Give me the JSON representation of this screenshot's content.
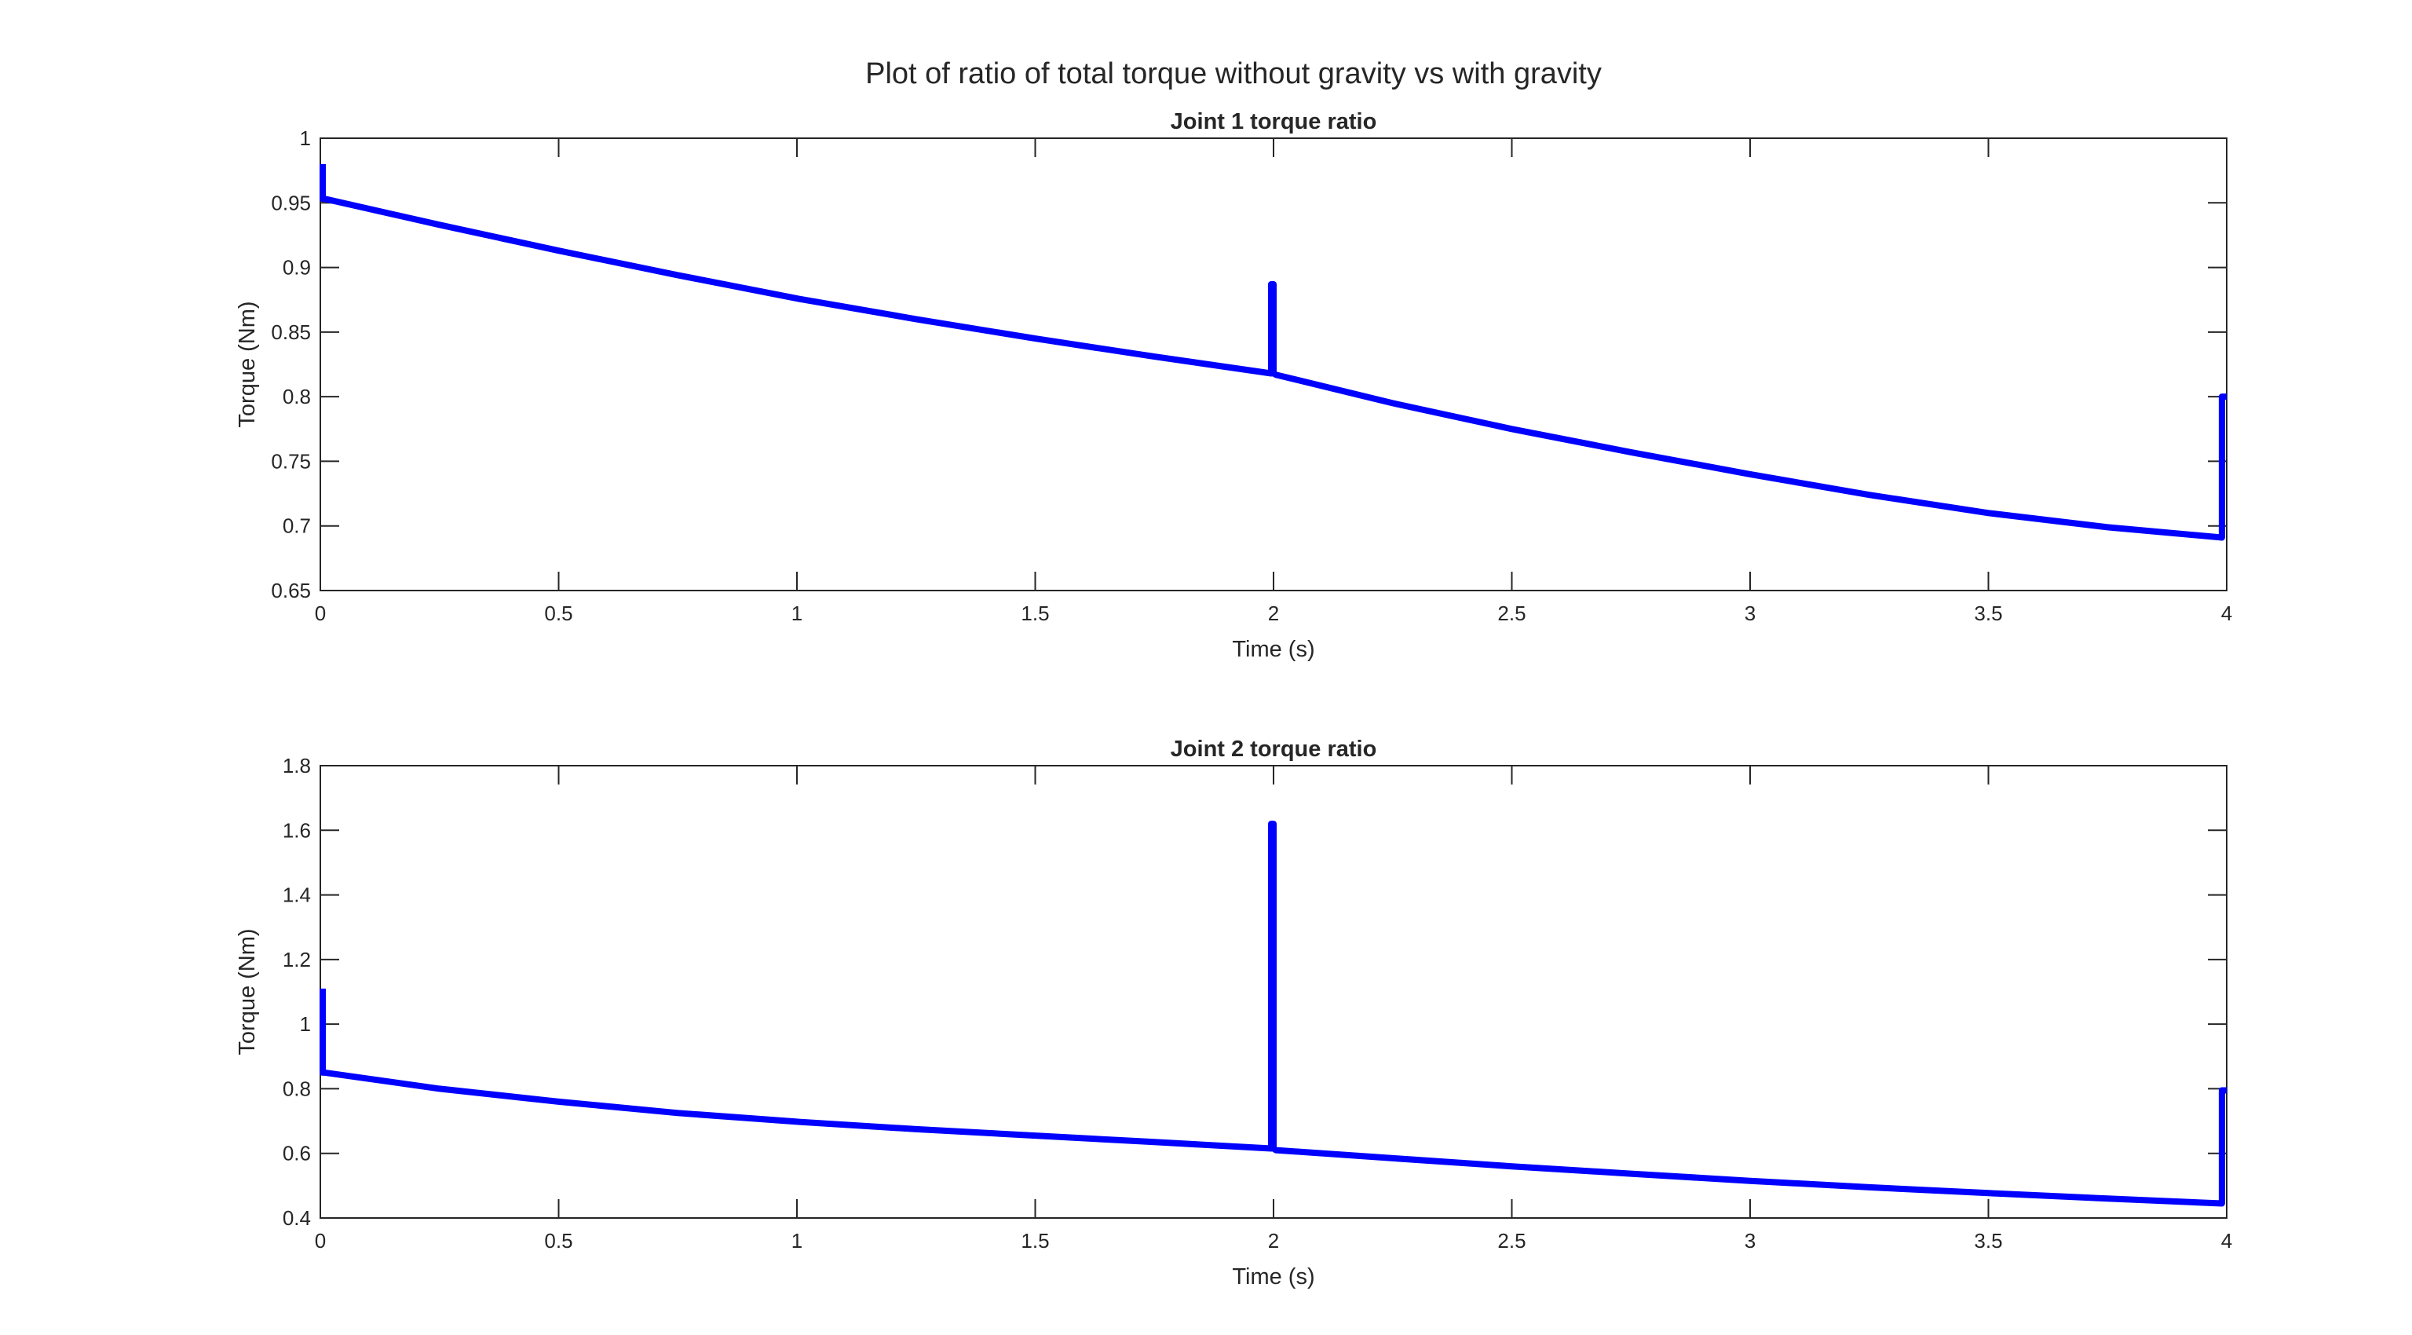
{
  "figure": {
    "title": "Plot of ratio of total torque without gravity vs with gravity"
  },
  "colors": {
    "series": "#0000ff",
    "axes": "#262626",
    "background": "#ffffff"
  },
  "chart_data": [
    {
      "type": "line",
      "title": "Joint 1 torque ratio",
      "xlabel": "Time (s)",
      "ylabel": "Torque (Nm)",
      "xlim": [
        0,
        4
      ],
      "ylim": [
        0.65,
        1
      ],
      "xticks": [
        0,
        0.5,
        1,
        1.5,
        2,
        2.5,
        3,
        3.5,
        4
      ],
      "xtick_labels": [
        "0",
        "0.5",
        "1",
        "1.5",
        "2",
        "2.5",
        "3",
        "3.5",
        "4"
      ],
      "yticks": [
        0.65,
        0.7,
        0.75,
        0.8,
        0.85,
        0.9,
        0.95,
        1
      ],
      "ytick_labels": [
        "0.65",
        "0.7",
        "0.75",
        "0.8",
        "0.85",
        "0.9",
        "0.95",
        "1"
      ],
      "grid": false,
      "series": [
        {
          "x": [
            0.005,
            0.005,
            0.01,
            0.25,
            0.5,
            0.75,
            1.0,
            1.25,
            1.5,
            1.75,
            1.995,
            1.995,
            2.0,
            2.0,
            2.005,
            2.25,
            2.5,
            2.75,
            3.0,
            3.25,
            3.5,
            3.75,
            3.99,
            3.99,
            4.0
          ],
          "y": [
            0.98,
            0.953,
            0.953,
            0.933,
            0.913,
            0.894,
            0.876,
            0.86,
            0.845,
            0.831,
            0.818,
            0.887,
            0.887,
            0.818,
            0.817,
            0.795,
            0.775,
            0.757,
            0.74,
            0.724,
            0.71,
            0.699,
            0.691,
            0.8,
            0.8
          ]
        }
      ]
    },
    {
      "type": "line",
      "title": "Joint 2 torque ratio",
      "xlabel": "Time (s)",
      "ylabel": "Torque (Nm)",
      "xlim": [
        0,
        4
      ],
      "ylim": [
        0.4,
        1.8
      ],
      "xticks": [
        0,
        0.5,
        1,
        1.5,
        2,
        2.5,
        3,
        3.5,
        4
      ],
      "xtick_labels": [
        "0",
        "0.5",
        "1",
        "1.5",
        "2",
        "2.5",
        "3",
        "3.5",
        "4"
      ],
      "yticks": [
        0.4,
        0.6,
        0.8,
        1.0,
        1.2,
        1.4,
        1.6,
        1.8
      ],
      "ytick_labels": [
        "0.4",
        "0.6",
        "0.8",
        "1",
        "1.2",
        "1.4",
        "1.6",
        "1.8"
      ],
      "grid": false,
      "series": [
        {
          "x": [
            0.005,
            0.005,
            0.01,
            0.25,
            0.5,
            0.75,
            1.0,
            1.25,
            1.5,
            1.75,
            1.995,
            1.995,
            2.0,
            2.0,
            2.005,
            2.25,
            2.5,
            2.75,
            3.0,
            3.25,
            3.5,
            3.75,
            3.99,
            3.99,
            4.0
          ],
          "y": [
            1.11,
            0.85,
            0.85,
            0.8,
            0.76,
            0.725,
            0.698,
            0.675,
            0.655,
            0.635,
            0.615,
            1.62,
            1.62,
            0.615,
            0.61,
            0.585,
            0.56,
            0.537,
            0.515,
            0.495,
            0.477,
            0.46,
            0.445,
            0.795,
            0.795
          ]
        }
      ]
    }
  ]
}
